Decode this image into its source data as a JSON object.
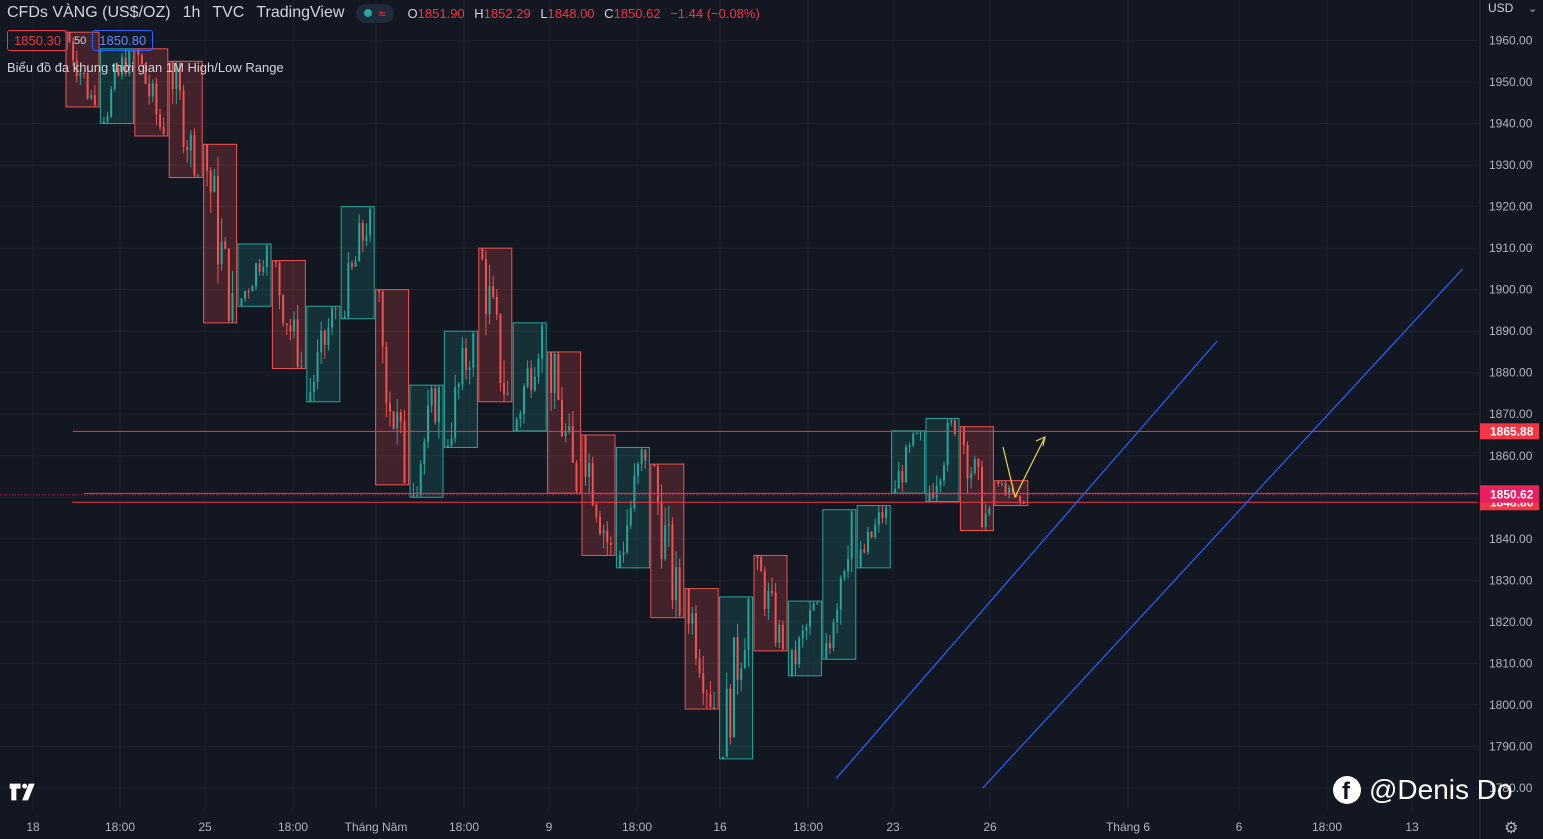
{
  "header": {
    "symbol": "CFDs VÀNG (US$/OZ)",
    "timeframe": "1h",
    "source": "TVC",
    "platform": "TradingView",
    "approx_icon": "≈",
    "ohlc": {
      "o_key": "O",
      "o_val": "1851.90",
      "h_key": "H",
      "h_val": "1852.29",
      "l_key": "L",
      "l_val": "1848.00",
      "c_key": "C",
      "c_val": "1850.62",
      "change": "−1.44 (−0.08%)"
    }
  },
  "prices": {
    "bid": "1850.30",
    "spread": "50",
    "ask": "1850.80"
  },
  "indicator_label": "Biểu đồ đa khung thời gian 1M High/Low Range",
  "currency": "USD",
  "currency_chevron": "⌄",
  "watermark": "@Denis Do",
  "facebook_letter": "f",
  "settings_icon": "⚙",
  "colors": {
    "background": "#131722",
    "grid": "#1e222d",
    "bull": "#26a69a",
    "bear": "#ef5350",
    "level": "#f23645",
    "channel": "#2962ff",
    "arrow": "#e8d44d",
    "current": "#e91e63"
  },
  "chart_data": {
    "type": "candlestick",
    "title": "CFDs VÀNG (US$/OZ)",
    "interval": "1h",
    "y_axis": {
      "ticks": [
        "1960.00",
        "1950.00",
        "1940.00",
        "1930.00",
        "1920.00",
        "1910.00",
        "1900.00",
        "1890.00",
        "1880.00",
        "1870.00",
        "1860.00",
        "1850.00",
        "1840.00",
        "1830.00",
        "1820.00",
        "1810.00",
        "1800.00",
        "1790.00",
        "1780.00"
      ],
      "range": [
        1776,
        1968
      ]
    },
    "x_axis": {
      "ticks": [
        "18",
        "18:00",
        "25",
        "18:00",
        "Tháng Năm",
        "18:00",
        "9",
        "18:00",
        "16",
        "18:00",
        "23",
        "26",
        "Tháng 6",
        "6",
        "18:00",
        "13"
      ]
    },
    "horizontal_levels": [
      {
        "label": "1865.88",
        "value": 1865.88
      },
      {
        "label": "1850.93",
        "value": 1850.93
      },
      {
        "label": "1848.80",
        "value": 1848.8
      }
    ],
    "last_price": {
      "label": "1850.62",
      "value": 1850.62
    },
    "range_boxes": [
      {
        "direction": "down",
        "open": 1962,
        "close": 1944
      },
      {
        "direction": "up",
        "open": 1940,
        "close": 1958
      },
      {
        "direction": "down",
        "open": 1958,
        "close": 1937
      },
      {
        "direction": "down",
        "open": 1955,
        "close": 1927
      },
      {
        "direction": "down",
        "open": 1935,
        "close": 1892
      },
      {
        "direction": "up",
        "open": 1896,
        "close": 1911
      },
      {
        "direction": "down",
        "open": 1907,
        "close": 1881
      },
      {
        "direction": "up",
        "open": 1873,
        "close": 1896
      },
      {
        "direction": "up",
        "open": 1893,
        "close": 1920
      },
      {
        "direction": "down",
        "open": 1900,
        "close": 1853
      },
      {
        "direction": "up",
        "open": 1850,
        "close": 1877
      },
      {
        "direction": "up",
        "open": 1862,
        "close": 1890
      },
      {
        "direction": "down",
        "open": 1910,
        "close": 1873
      },
      {
        "direction": "up",
        "open": 1866,
        "close": 1892
      },
      {
        "direction": "down",
        "open": 1885,
        "close": 1851
      },
      {
        "direction": "down",
        "open": 1865,
        "close": 1836
      },
      {
        "direction": "up",
        "open": 1833,
        "close": 1862
      },
      {
        "direction": "down",
        "open": 1858,
        "close": 1821
      },
      {
        "direction": "down",
        "open": 1828,
        "close": 1799
      },
      {
        "direction": "up",
        "open": 1787,
        "close": 1826
      },
      {
        "direction": "down",
        "open": 1836,
        "close": 1813
      },
      {
        "direction": "up",
        "open": 1807,
        "close": 1825
      },
      {
        "direction": "up",
        "open": 1811,
        "close": 1847
      },
      {
        "direction": "up",
        "open": 1833,
        "close": 1848
      },
      {
        "direction": "up",
        "open": 1851,
        "close": 1866
      },
      {
        "direction": "up",
        "open": 1849,
        "close": 1869
      },
      {
        "direction": "down",
        "open": 1867,
        "close": 1842
      },
      {
        "direction": "down",
        "open": 1854,
        "close": 1848
      }
    ],
    "trend_channel": {
      "upper": [
        {
          "t": 26.65,
          "price": 1780
        },
        {
          "t": 40.6,
          "price": 1905
        }
      ],
      "lower": [
        {
          "t": 23.2,
          "price": 1790
        },
        {
          "t": 31.4,
          "price": 1868
        }
      ]
    }
  }
}
